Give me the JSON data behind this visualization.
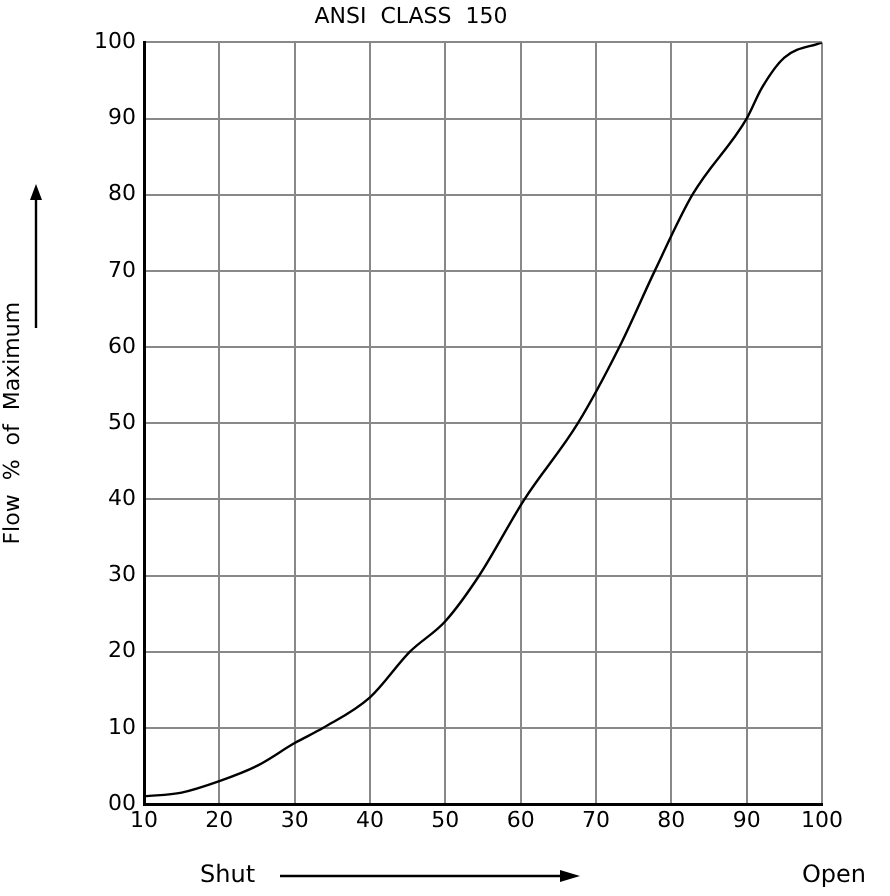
{
  "chart_data": {
    "type": "line",
    "title": "ANSI  CLASS  150",
    "ylabel": "Flow  %  of  Maximum",
    "annotations": [
      "Shut",
      "Open"
    ],
    "series": [
      {
        "color": "#000000",
        "x": [
          10,
          15,
          20,
          25,
          30,
          33.8,
          40,
          45.3,
          50,
          54.5,
          60.5,
          67.6,
          73.1,
          77.8,
          82.8,
          90,
          92,
          95,
          100
        ],
        "values": [
          1,
          1.5,
          3,
          5,
          8,
          10,
          14,
          20,
          24,
          30,
          40,
          50,
          60,
          70,
          80,
          90,
          94,
          98,
          100
        ]
      }
    ],
    "xlim": [
      10,
      100
    ],
    "xticks": [
      10,
      20,
      30,
      40,
      50,
      60,
      70,
      80,
      90,
      100
    ],
    "ylim": [
      0,
      100
    ],
    "yticks": [
      {
        "value": 0,
        "label": "00"
      },
      10,
      20,
      30,
      40,
      50,
      60,
      70,
      80,
      90,
      100
    ],
    "grid": true,
    "legend": false,
    "marker": "none",
    "line_style": "solid"
  }
}
